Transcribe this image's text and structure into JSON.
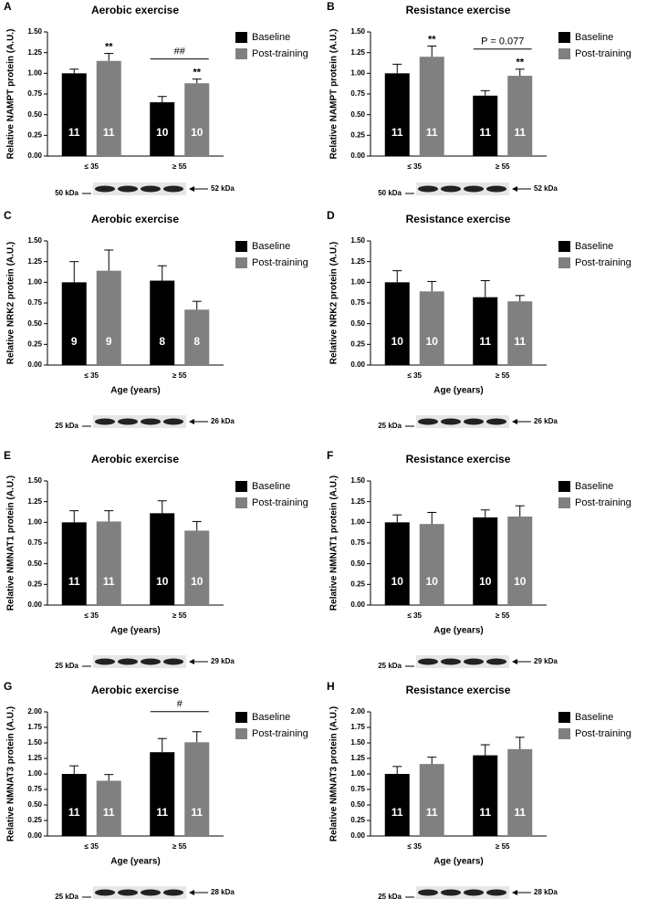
{
  "chart_data": [
    {
      "type": "bar",
      "panel": "A",
      "title": "Aerobic exercise",
      "y_label": "Relative NAMPT protein (A.U.)",
      "categories": [
        "≤ 35",
        "≥ 55"
      ],
      "series": [
        {
          "name": "Baseline",
          "color": "#000000",
          "values": [
            1.0,
            0.65
          ],
          "errors": [
            0.05,
            0.07
          ],
          "n": [
            11,
            10
          ],
          "markers": [
            null,
            null
          ]
        },
        {
          "name": "Post-training",
          "color": "#808080",
          "values": [
            1.15,
            0.88
          ],
          "errors": [
            0.09,
            0.05
          ],
          "n": [
            11,
            10
          ],
          "markers": [
            "**",
            "**"
          ]
        }
      ],
      "group_annotations": [
        null,
        "##"
      ],
      "ylim": [
        0,
        1.5
      ],
      "yticks": [
        {
          "value": 0,
          "label": "0.00"
        },
        {
          "value": 0.25,
          "label": "0.25"
        },
        {
          "value": 0.5,
          "label": "0.50"
        },
        {
          "value": 0.75,
          "label": "0.75"
        },
        {
          "value": 1,
          "label": "1.00"
        },
        {
          "value": 1.25,
          "label": "1.25"
        },
        {
          "value": 1.5,
          "label": "1.50"
        }
      ],
      "legend": "right",
      "blot": {
        "left_label": "50 kDa",
        "right_label": "52 kDa"
      }
    },
    {
      "type": "bar",
      "panel": "B",
      "title": "Resistance exercise",
      "y_label": "Relative NAMPT protein (A.U.)",
      "categories": [
        "≤ 35",
        "≥ 55"
      ],
      "series": [
        {
          "name": "Baseline",
          "color": "#000000",
          "values": [
            1.0,
            0.73
          ],
          "errors": [
            0.11,
            0.06
          ],
          "n": [
            11,
            11
          ],
          "markers": [
            null,
            null
          ]
        },
        {
          "name": "Post-training",
          "color": "#808080",
          "values": [
            1.2,
            0.97
          ],
          "errors": [
            0.13,
            0.08
          ],
          "n": [
            11,
            11
          ],
          "markers": [
            "**",
            "**"
          ]
        }
      ],
      "group_annotations": [
        null,
        "P = 0.077"
      ],
      "ylim": [
        0,
        1.5
      ],
      "yticks": [
        {
          "value": 0,
          "label": "0.00"
        },
        {
          "value": 0.25,
          "label": "0.25"
        },
        {
          "value": 0.5,
          "label": "0.50"
        },
        {
          "value": 0.75,
          "label": "0.75"
        },
        {
          "value": 1,
          "label": "1.00"
        },
        {
          "value": 1.25,
          "label": "1.25"
        },
        {
          "value": 1.5,
          "label": "1.50"
        }
      ],
      "legend": "right",
      "blot": {
        "left_label": "50 kDa",
        "right_label": "52 kDa"
      }
    },
    {
      "type": "bar",
      "panel": "C",
      "title": "Aerobic exercise",
      "y_label": "Relative NRK2 protein (A.U.)",
      "x_label": "Age (years)",
      "categories": [
        "≤ 35",
        "≥ 55"
      ],
      "series": [
        {
          "name": "Baseline",
          "color": "#000000",
          "values": [
            1.0,
            1.02
          ],
          "errors": [
            0.25,
            0.18
          ],
          "n": [
            9,
            8
          ],
          "markers": [
            null,
            null
          ]
        },
        {
          "name": "Post-training",
          "color": "#808080",
          "values": [
            1.14,
            0.67
          ],
          "errors": [
            0.25,
            0.1
          ],
          "n": [
            9,
            8
          ],
          "markers": [
            null,
            null
          ]
        }
      ],
      "group_annotations": [
        null,
        null
      ],
      "ylim": [
        0,
        1.5
      ],
      "yticks": [
        {
          "value": 0,
          "label": "0.00"
        },
        {
          "value": 0.25,
          "label": "0.25"
        },
        {
          "value": 0.5,
          "label": "0.50"
        },
        {
          "value": 0.75,
          "label": "0.75"
        },
        {
          "value": 1,
          "label": "1.00"
        },
        {
          "value": 1.25,
          "label": "1.25"
        },
        {
          "value": 1.5,
          "label": "1.50"
        }
      ],
      "legend": "right",
      "blot": {
        "left_label": "25 kDa",
        "right_label": "26 kDa"
      }
    },
    {
      "type": "bar",
      "panel": "D",
      "title": "Resistance exercise",
      "y_label": "Relative NRK2 protein (A.U.)",
      "x_label": "Age (years)",
      "categories": [
        "≤ 35",
        "≥ 55"
      ],
      "series": [
        {
          "name": "Baseline",
          "color": "#000000",
          "values": [
            1.0,
            0.82
          ],
          "errors": [
            0.14,
            0.2
          ],
          "n": [
            10,
            11
          ],
          "markers": [
            null,
            null
          ]
        },
        {
          "name": "Post-training",
          "color": "#808080",
          "values": [
            0.89,
            0.77
          ],
          "errors": [
            0.12,
            0.07
          ],
          "n": [
            10,
            11
          ],
          "markers": [
            null,
            null
          ]
        }
      ],
      "group_annotations": [
        null,
        null
      ],
      "ylim": [
        0,
        1.5
      ],
      "yticks": [
        {
          "value": 0,
          "label": "0.00"
        },
        {
          "value": 0.25,
          "label": "0.25"
        },
        {
          "value": 0.5,
          "label": "0.50"
        },
        {
          "value": 0.75,
          "label": "0.75"
        },
        {
          "value": 1,
          "label": "1.00"
        },
        {
          "value": 1.25,
          "label": "1.25"
        },
        {
          "value": 1.5,
          "label": "1.50"
        }
      ],
      "legend": "right",
      "blot": {
        "left_label": "25 kDa",
        "right_label": "26 kDa"
      }
    },
    {
      "type": "bar",
      "panel": "E",
      "title": "Aerobic exercise",
      "y_label": "Relative NMNAT1 protein (A.U.)",
      "x_label": "Age (years)",
      "categories": [
        "≤ 35",
        "≥ 55"
      ],
      "series": [
        {
          "name": "Baseline",
          "color": "#000000",
          "values": [
            1.0,
            1.11
          ],
          "errors": [
            0.14,
            0.15
          ],
          "n": [
            11,
            10
          ],
          "markers": [
            null,
            null
          ]
        },
        {
          "name": "Post-training",
          "color": "#808080",
          "values": [
            1.01,
            0.9
          ],
          "errors": [
            0.13,
            0.11
          ],
          "n": [
            11,
            10
          ],
          "markers": [
            null,
            null
          ]
        }
      ],
      "group_annotations": [
        null,
        null
      ],
      "ylim": [
        0,
        1.5
      ],
      "yticks": [
        {
          "value": 0,
          "label": "0.00"
        },
        {
          "value": 0.25,
          "label": "0.25"
        },
        {
          "value": 0.5,
          "label": "0.50"
        },
        {
          "value": 0.75,
          "label": "0.75"
        },
        {
          "value": 1,
          "label": "1.00"
        },
        {
          "value": 1.25,
          "label": "1.25"
        },
        {
          "value": 1.5,
          "label": "1.50"
        }
      ],
      "legend": "right",
      "blot": {
        "left_label": "25 kDa",
        "right_label": "29 kDa"
      }
    },
    {
      "type": "bar",
      "panel": "F",
      "title": "Resistance exercise",
      "y_label": "Relative NMNAT1 protein (A.U.)",
      "x_label": "Age (years)",
      "categories": [
        "≤ 35",
        "≥ 55"
      ],
      "series": [
        {
          "name": "Baseline",
          "color": "#000000",
          "values": [
            1.0,
            1.06
          ],
          "errors": [
            0.09,
            0.09
          ],
          "n": [
            10,
            10
          ],
          "markers": [
            null,
            null
          ]
        },
        {
          "name": "Post-training",
          "color": "#808080",
          "values": [
            0.98,
            1.07
          ],
          "errors": [
            0.14,
            0.13
          ],
          "n": [
            10,
            10
          ],
          "markers": [
            null,
            null
          ]
        }
      ],
      "group_annotations": [
        null,
        null
      ],
      "ylim": [
        0,
        1.5
      ],
      "yticks": [
        {
          "value": 0,
          "label": "0.00"
        },
        {
          "value": 0.25,
          "label": "0.25"
        },
        {
          "value": 0.5,
          "label": "0.50"
        },
        {
          "value": 0.75,
          "label": "0.75"
        },
        {
          "value": 1,
          "label": "1.00"
        },
        {
          "value": 1.25,
          "label": "1.25"
        },
        {
          "value": 1.5,
          "label": "1.50"
        }
      ],
      "legend": "right",
      "blot": {
        "left_label": "25 kDa",
        "right_label": "29 kDa"
      }
    },
    {
      "type": "bar",
      "panel": "G",
      "title": "Aerobic exercise",
      "y_label": "Relative NMNAT3 protein (A.U.)",
      "x_label": "Age (years)",
      "categories": [
        "≤ 35",
        "≥ 55"
      ],
      "series": [
        {
          "name": "Baseline",
          "color": "#000000",
          "values": [
            1.0,
            1.35
          ],
          "errors": [
            0.13,
            0.22
          ],
          "n": [
            11,
            11
          ],
          "markers": [
            null,
            null
          ]
        },
        {
          "name": "Post-training",
          "color": "#808080",
          "values": [
            0.89,
            1.51
          ],
          "errors": [
            0.1,
            0.17
          ],
          "n": [
            11,
            11
          ],
          "markers": [
            null,
            null
          ]
        }
      ],
      "group_annotations": [
        null,
        "#"
      ],
      "ylim": [
        0,
        2
      ],
      "yticks": [
        {
          "value": 0,
          "label": "0.00"
        },
        {
          "value": 0.25,
          "label": "0.25"
        },
        {
          "value": 0.5,
          "label": "0.50"
        },
        {
          "value": 0.75,
          "label": "0.75"
        },
        {
          "value": 1,
          "label": "1.00"
        },
        {
          "value": 1.25,
          "label": "1.25"
        },
        {
          "value": 1.5,
          "label": "1.50"
        },
        {
          "value": 1.75,
          "label": "1.75"
        },
        {
          "value": 2,
          "label": "2.00"
        }
      ],
      "legend": "right",
      "blot": {
        "left_label": "25 kDa",
        "right_label": "28 kDa"
      }
    },
    {
      "type": "bar",
      "panel": "H",
      "title": "Resistance exercise",
      "y_label": "Relative NMNAT3 protein (A.U.)",
      "x_label": "Age (years)",
      "categories": [
        "≤ 35",
        "≥ 55"
      ],
      "series": [
        {
          "name": "Baseline",
          "color": "#000000",
          "values": [
            1.0,
            1.3
          ],
          "errors": [
            0.12,
            0.17
          ],
          "n": [
            11,
            11
          ],
          "markers": [
            null,
            null
          ]
        },
        {
          "name": "Post-training",
          "color": "#808080",
          "values": [
            1.16,
            1.4
          ],
          "errors": [
            0.11,
            0.19
          ],
          "n": [
            11,
            11
          ],
          "markers": [
            null,
            null
          ]
        }
      ],
      "group_annotations": [
        null,
        null
      ],
      "ylim": [
        0,
        2
      ],
      "yticks": [
        {
          "value": 0,
          "label": "0.00"
        },
        {
          "value": 0.25,
          "label": "0.25"
        },
        {
          "value": 0.5,
          "label": "0.50"
        },
        {
          "value": 0.75,
          "label": "0.75"
        },
        {
          "value": 1,
          "label": "1.00"
        },
        {
          "value": 1.25,
          "label": "1.25"
        },
        {
          "value": 1.5,
          "label": "1.50"
        },
        {
          "value": 1.75,
          "label": "1.75"
        },
        {
          "value": 2,
          "label": "2.00"
        }
      ],
      "legend": "right",
      "blot": {
        "left_label": "25 kDa",
        "right_label": "28 kDa"
      }
    }
  ]
}
